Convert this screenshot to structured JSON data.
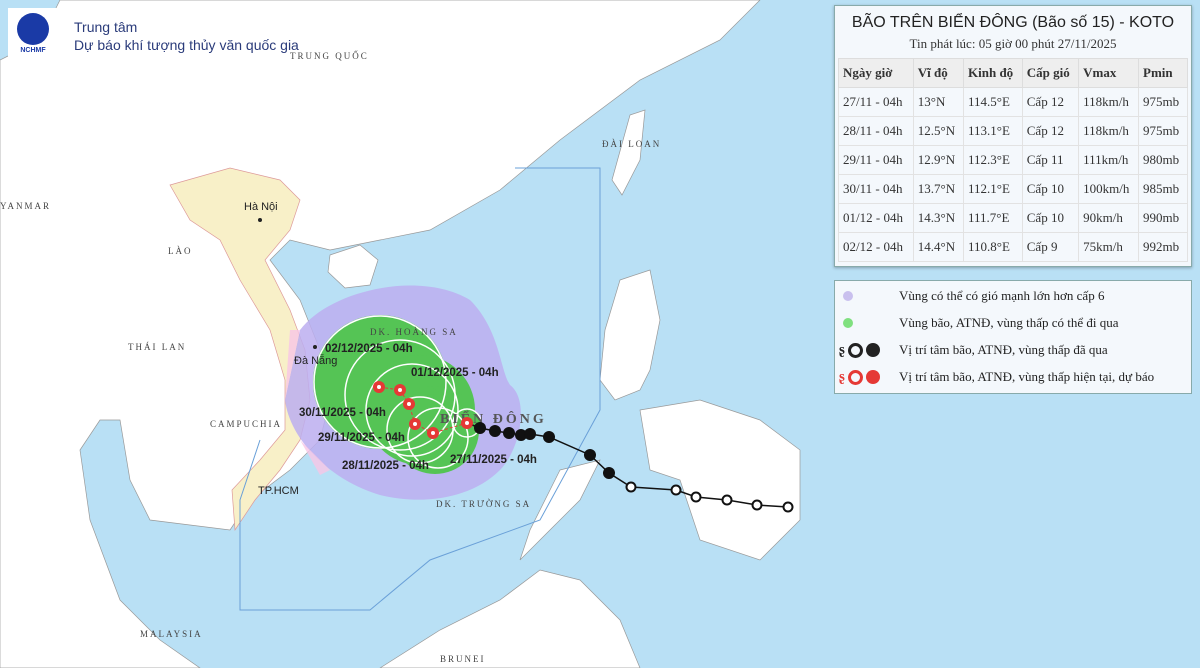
{
  "header": {
    "logo_text": "NCHMF",
    "org_line1": "Trung tâm",
    "org_line2": "Dự báo khí tượng thủy văn quốc gia"
  },
  "map_labels": {
    "china": "TRUNG QUỐC",
    "myanmar": "YANMAR",
    "laos": "LÀO",
    "hanoi": "Hà Nội",
    "thailand": "THÁI LAN",
    "cambodia": "CAMPUCHIA",
    "danang": "Đà Nẵng",
    "hcm": "TP.HCM",
    "taiwan": "ĐÀI LOAN",
    "paracel": "DK. HOÀNG SA",
    "sea": "BIỂN ĐÔNG",
    "spratly": "DK. TRƯỜNG SA",
    "malaysia": "MALAYSIA",
    "brunei": "BRUNEI"
  },
  "forecast_labels": [
    "27/11/2025 - 04h",
    "28/11/2025 - 04h",
    "29/11/2025 - 04h",
    "30/11/2025 - 04h",
    "01/12/2025 - 04h",
    "02/12/2025 - 04h"
  ],
  "panel": {
    "title": "BÃO TRÊN BIỂN ĐÔNG (Bão số 15) - KOTO",
    "subtitle": "Tin phát lúc: 05 giờ 00 phút 27/11/2025",
    "columns": [
      "Ngày giờ",
      "Vĩ độ",
      "Kinh độ",
      "Cấp gió",
      "Vmax",
      "Pmin"
    ],
    "rows": [
      [
        "27/11 - 04h",
        "13°N",
        "114.5°E",
        "Cấp 12",
        "118km/h",
        "975mb"
      ],
      [
        "28/11 - 04h",
        "12.5°N",
        "113.1°E",
        "Cấp 12",
        "118km/h",
        "975mb"
      ],
      [
        "29/11 - 04h",
        "12.9°N",
        "112.3°E",
        "Cấp 11",
        "111km/h",
        "980mb"
      ],
      [
        "30/11 - 04h",
        "13.7°N",
        "112.1°E",
        "Cấp 10",
        "100km/h",
        "985mb"
      ],
      [
        "01/12 - 04h",
        "14.3°N",
        "111.7°E",
        "Cấp 10",
        "90km/h",
        "990mb"
      ],
      [
        "02/12 - 04h",
        "14.4°N",
        "110.8°E",
        "Cấp 9",
        "75km/h",
        "992mb"
      ]
    ]
  },
  "legend": [
    {
      "label": "Vùng có thể có gió mạnh lớn hơn cấp 6",
      "color": "#c9c0ee"
    },
    {
      "label": "Vùng bão, ATNĐ, vùng thấp có thể đi qua",
      "color": "#7fe07f"
    },
    {
      "label": "Vị trí tâm bão, ATNĐ, vùng thấp đã qua",
      "color": "#222222"
    },
    {
      "label": "Vị trí tâm bão, ATNĐ, vùng thấp hiện tại, dự báo",
      "color": "#e53935"
    }
  ],
  "colors": {
    "sea": "#b9e0f5",
    "land": "#ffffff",
    "vietnam": "#f8f0c8",
    "wind_zone": "#bcaef0",
    "storm_zone": "#55c455",
    "past_track": "#111111",
    "forecast": "#e53935"
  }
}
